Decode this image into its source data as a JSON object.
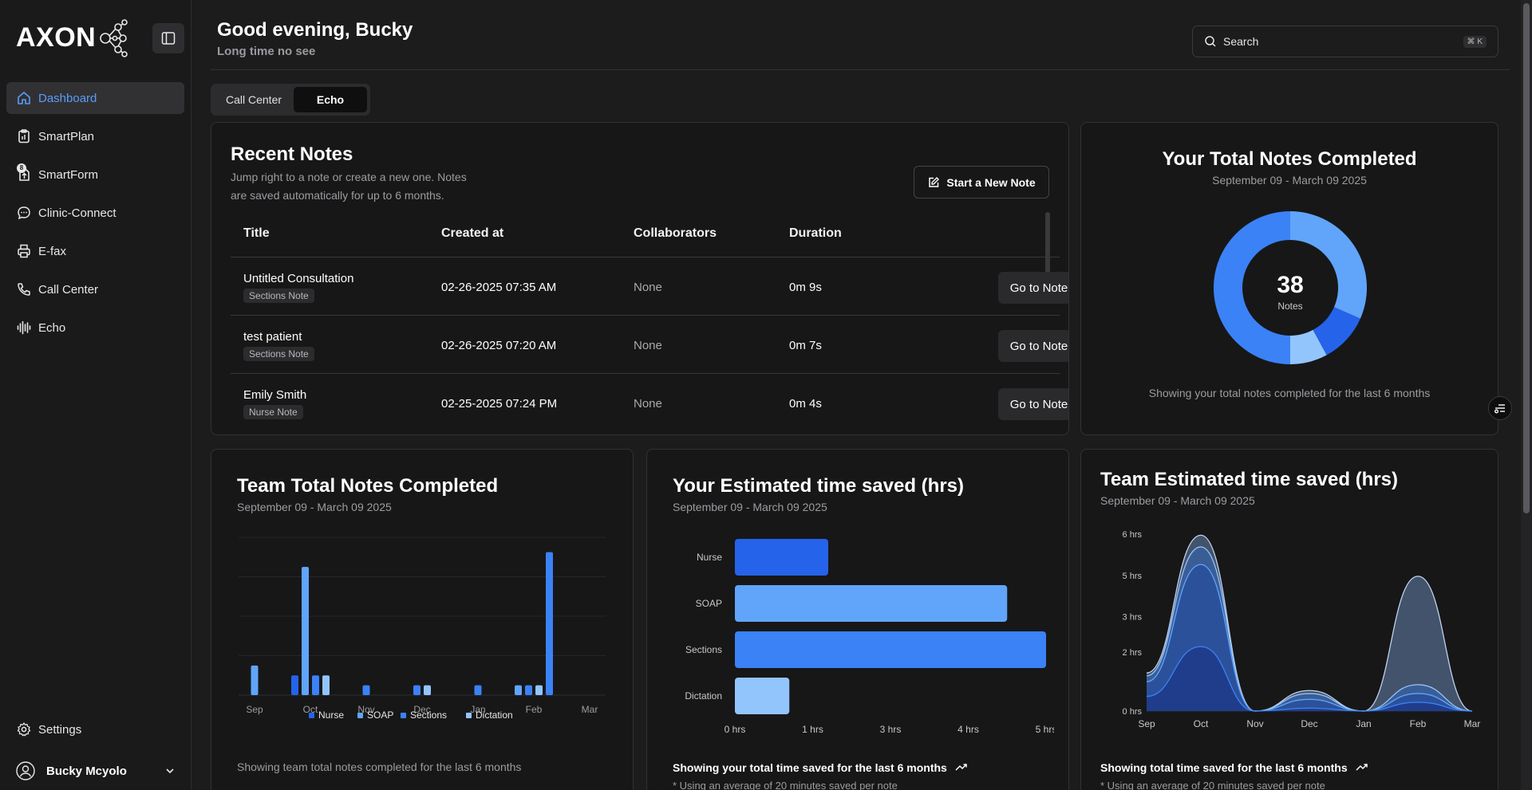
{
  "brand": {
    "name": "AXON"
  },
  "sidebar": {
    "items": [
      {
        "label": "Dashboard",
        "icon": "home-icon",
        "active": true
      },
      {
        "label": "SmartPlan",
        "icon": "clipboard-icon"
      },
      {
        "label": "SmartForm",
        "icon": "form-upload-icon",
        "badge": "8"
      },
      {
        "label": "Clinic-Connect",
        "icon": "chat-icon"
      },
      {
        "label": "E-fax",
        "icon": "printer-icon"
      },
      {
        "label": "Call Center",
        "icon": "phone-icon"
      },
      {
        "label": "Echo",
        "icon": "waveform-icon"
      }
    ],
    "settings_label": "Settings",
    "user_name": "Bucky Mcyolo"
  },
  "header": {
    "greeting": "Good evening, Bucky",
    "subtitle": "Long time no see"
  },
  "search": {
    "placeholder": "Search",
    "shortcut": "⌘ K"
  },
  "tabs": [
    {
      "label": "Call Center"
    },
    {
      "label": "Echo",
      "active": true
    }
  ],
  "recent_notes": {
    "title": "Recent Notes",
    "description_line1": "Jump right to a note or create a new one. Notes",
    "description_line2": "are saved automatically for up to 6 months.",
    "new_note_label": "Start a New Note",
    "columns": [
      "Title",
      "Created at",
      "Collaborators",
      "Duration"
    ],
    "rows": [
      {
        "title": "Untitled Consultation",
        "type": "Sections Note",
        "created": "02-26-2025 07:35 AM",
        "collaborators": "None",
        "duration": "0m 9s",
        "action": "Go to Note"
      },
      {
        "title": "test patient",
        "type": "Sections Note",
        "created": "02-26-2025 07:20 AM",
        "collaborators": "None",
        "duration": "0m 7s",
        "action": "Go to Note"
      },
      {
        "title": "Emily Smith",
        "type": "Nurse Note",
        "created": "02-25-2025 07:24 PM",
        "collaborators": "None",
        "duration": "0m 4s",
        "action": "Go to Note"
      }
    ]
  },
  "total_notes": {
    "title": "Your Total Notes Completed",
    "range": "September 09 - March 09 2025",
    "count": "38",
    "count_label": "Notes",
    "footer": "Showing your total notes completed for the last 6 months"
  },
  "team_notes": {
    "title": "Team Total Notes Completed",
    "range": "September 09 - March 09 2025",
    "footer": "Showing team total notes completed for the last 6 months",
    "legend": [
      "Nurse",
      "SOAP",
      "Sections",
      "Dictation"
    ]
  },
  "time_saved": {
    "title": "Your Estimated time saved (hrs)",
    "range": "September 09 - March 09 2025",
    "footer": "Showing your total time saved for the last 6 months",
    "note": "* Using an average of 20 minutes saved per note"
  },
  "team_time": {
    "title": "Team Estimated time saved (hrs)",
    "range": "September 09 - March 09 2025",
    "footer": "Showing total time saved for the last 6 months",
    "note": "* Using an average of 20 minutes saved per note"
  },
  "colors": {
    "nurse": "#2563eb",
    "soap": "#60a5fa",
    "sections": "#3b82f6",
    "dictation": "#93c5fd",
    "accent": "#5b9cf6"
  },
  "chart_data": [
    {
      "type": "pie",
      "title": "Your Total Notes Completed",
      "categories": [
        "SOAP",
        "Nurse",
        "Dictation",
        "Sections"
      ],
      "values": [
        12,
        4,
        3,
        19
      ],
      "total": 38
    },
    {
      "type": "bar",
      "title": "Team Total Notes Completed",
      "categories": [
        "Sep",
        "Oct",
        "Nov",
        "Dec",
        "Jan",
        "Feb",
        "Mar"
      ],
      "series": [
        {
          "name": "Nurse",
          "values": [
            0,
            2,
            0,
            0,
            0,
            0,
            0
          ]
        },
        {
          "name": "SOAP",
          "values": [
            3,
            13,
            0,
            0,
            0,
            1,
            0
          ]
        },
        {
          "name": "Sections",
          "values": [
            0,
            2,
            1,
            1,
            1,
            1,
            0
          ]
        },
        {
          "name": "Dictation",
          "values": [
            0,
            2,
            0,
            1,
            0,
            1,
            0
          ]
        },
        {
          "name": "Sections (Feb)",
          "values": [
            0,
            0,
            0,
            0,
            0,
            14.5,
            0
          ]
        }
      ],
      "legend": "bottom"
    },
    {
      "type": "bar",
      "orientation": "horizontal",
      "title": "Your Estimated time saved (hrs)",
      "categories": [
        "Nurse",
        "SOAP",
        "Sections",
        "Dictation"
      ],
      "values": [
        1.2,
        3.5,
        4.0,
        0.7
      ],
      "x_ticks": [
        "0 hrs",
        "1 hrs",
        "3 hrs",
        "4 hrs",
        "5 hrs"
      ]
    },
    {
      "type": "area",
      "title": "Team Estimated time saved (hrs)",
      "x": [
        "Sep",
        "Oct",
        "Nov",
        "Dec",
        "Jan",
        "Feb",
        "Mar"
      ],
      "y_ticks": [
        "0 hrs",
        "2 hrs",
        "3 hrs",
        "5 hrs",
        "6 hrs"
      ],
      "series": [
        {
          "name": "Nurse",
          "values": [
            0.5,
            2.2,
            0,
            0.1,
            0,
            0.3,
            0
          ]
        },
        {
          "name": "Sections",
          "values": [
            1.0,
            5.0,
            0,
            0.4,
            0,
            0.6,
            0
          ]
        },
        {
          "name": "Dictation",
          "values": [
            1.2,
            5.6,
            0,
            0.6,
            0,
            0.9,
            0
          ]
        },
        {
          "name": "SOAP",
          "values": [
            1.3,
            6.0,
            0,
            0.7,
            0,
            4.6,
            0
          ]
        }
      ]
    }
  ]
}
